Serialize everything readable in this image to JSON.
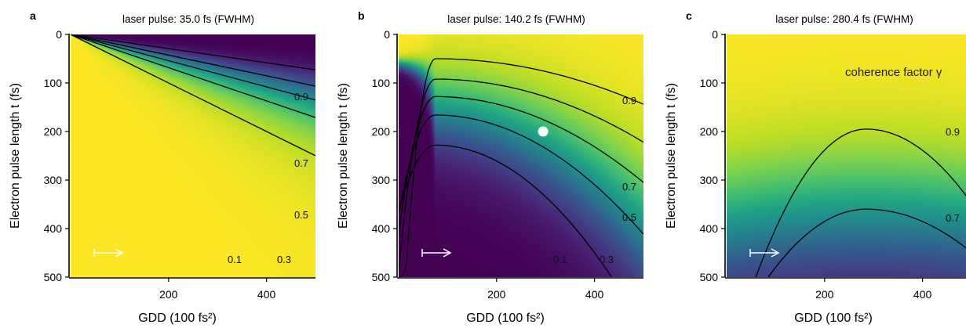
{
  "chart_data": {
    "type": "heatmap",
    "colormap": "viridis",
    "panels": [
      {
        "letter": "a",
        "title": "laser pulse: 35.0 fs (FWHM)",
        "laser_fwhm_fs": 35.0,
        "xlabel": "GDD (100 fs²)",
        "ylabel": "Electron pulse length t (fs)",
        "xlim": [
          0,
          500
        ],
        "ylim": [
          500,
          0
        ],
        "xticks": [
          200,
          400
        ],
        "yticks": [
          0,
          100,
          200,
          300,
          400,
          500
        ],
        "contour_levels": [
          0.1,
          0.3,
          0.5,
          0.7,
          0.9
        ],
        "contour_labels": [
          "0.1",
          "0.3",
          "0.5",
          "0.7",
          "0.9"
        ],
        "arrow": true,
        "marker": null,
        "annotation": ""
      },
      {
        "letter": "b",
        "title": "laser pulse: 140.2 fs (FWHM)",
        "laser_fwhm_fs": 140.2,
        "xlabel": "GDD (100 fs²)",
        "ylabel": "Electron pulse length t (fs)",
        "xlim": [
          0,
          500
        ],
        "ylim": [
          500,
          0
        ],
        "xticks": [
          200,
          400
        ],
        "yticks": [
          0,
          100,
          200,
          300,
          400,
          500
        ],
        "contour_levels": [
          0.1,
          0.3,
          0.5,
          0.7,
          0.9
        ],
        "contour_labels": [
          "0.1",
          "0.3",
          "0.5",
          "0.7",
          "0.9"
        ],
        "arrow": true,
        "marker": {
          "gdd": 295,
          "t": 200
        },
        "annotation": ""
      },
      {
        "letter": "c",
        "title": "laser pulse: 280.4 fs (FWHM)",
        "laser_fwhm_fs": 280.4,
        "xlabel": "GDD (100 fs²)",
        "ylabel": "Electron pulse length t (fs)",
        "xlim": [
          0,
          500
        ],
        "ylim": [
          500,
          0
        ],
        "xticks": [
          200,
          400
        ],
        "yticks": [
          0,
          100,
          200,
          300,
          400,
          500
        ],
        "contour_levels": [
          0.7,
          0.9
        ],
        "contour_labels": [
          "0.7",
          "0.9"
        ],
        "arrow": true,
        "marker": null,
        "annotation": "coherence factor γ"
      }
    ]
  }
}
